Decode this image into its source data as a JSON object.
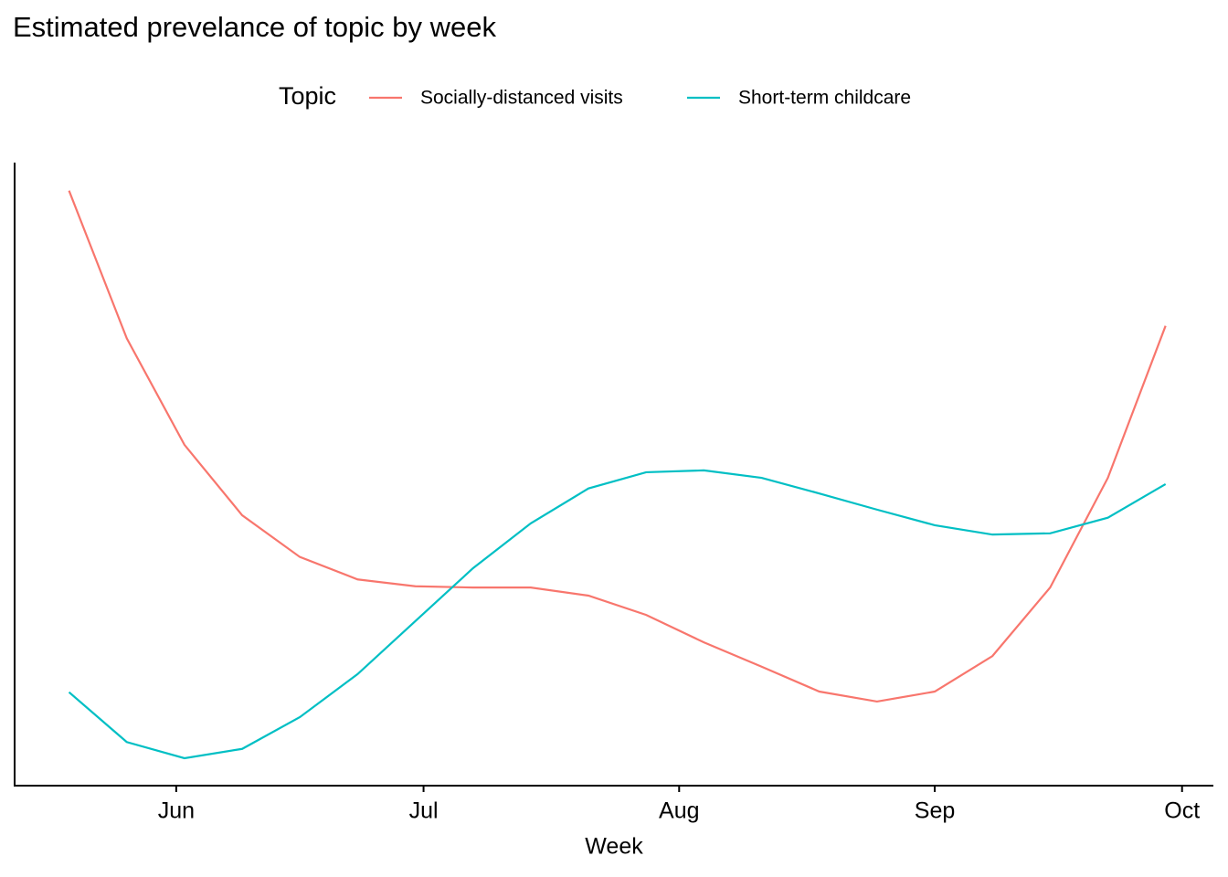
{
  "chart_data": {
    "type": "line",
    "title": "Estimated prevelance of topic by week",
    "legend_title": "Topic",
    "xlabel": "Week",
    "x": [
      140,
      147,
      154,
      161,
      168,
      175,
      182,
      189,
      196,
      203,
      210,
      217,
      224,
      231,
      238,
      245,
      252,
      259,
      266,
      273
    ],
    "xlim": [
      133.4,
      278.8
    ],
    "xticks": [
      {
        "value": 153,
        "label": "Jun"
      },
      {
        "value": 183,
        "label": "Jul"
      },
      {
        "value": 214,
        "label": "Aug"
      },
      {
        "value": 245,
        "label": "Sep"
      },
      {
        "value": 275,
        "label": "Oct"
      }
    ],
    "ylim": [
      0,
      100
    ],
    "legend": "top",
    "series": [
      {
        "name": "Socially-distanced visits",
        "color": "#F8766D",
        "values": [
          95.5,
          71.8,
          54.7,
          43.4,
          36.7,
          33.1,
          32.0,
          31.8,
          31.8,
          30.5,
          27.4,
          23.0,
          19.1,
          15.1,
          13.5,
          15.1,
          20.8,
          31.8,
          49.4,
          73.8
        ]
      },
      {
        "name": "Short-term childcare",
        "color": "#00BFC4",
        "values": [
          15.0,
          7.0,
          4.4,
          5.9,
          11.0,
          17.9,
          26.4,
          34.9,
          42.1,
          47.7,
          50.3,
          50.6,
          49.4,
          46.9,
          44.3,
          41.8,
          40.3,
          40.5,
          43.0,
          48.4
        ]
      }
    ]
  }
}
